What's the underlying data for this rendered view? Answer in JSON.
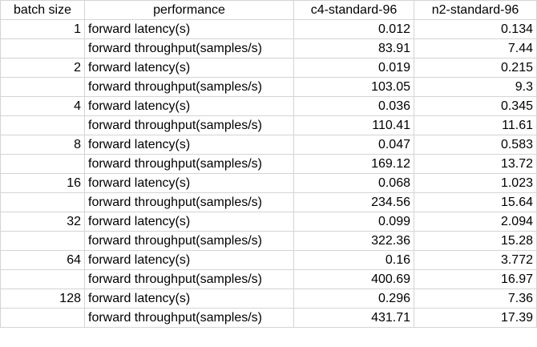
{
  "sheet": {
    "headers": [
      "batch size",
      "performance",
      "c4-standard-96",
      "n2-standard-96"
    ],
    "rows": [
      {
        "batch": "1",
        "performance": "forward latency(s)",
        "c4": "0.012",
        "n2": "0.134"
      },
      {
        "batch": "",
        "performance": "forward throughput(samples/s)",
        "c4": "83.91",
        "n2": "7.44"
      },
      {
        "batch": "2",
        "performance": "forward latency(s)",
        "c4": "0.019",
        "n2": "0.215"
      },
      {
        "batch": "",
        "performance": "forward throughput(samples/s)",
        "c4": "103.05",
        "n2": "9.3"
      },
      {
        "batch": "4",
        "performance": "forward latency(s)",
        "c4": "0.036",
        "n2": "0.345"
      },
      {
        "batch": "",
        "performance": "forward throughput(samples/s)",
        "c4": "110.41",
        "n2": "11.61"
      },
      {
        "batch": "8",
        "performance": "forward latency(s)",
        "c4": "0.047",
        "n2": "0.583"
      },
      {
        "batch": "",
        "performance": "forward throughput(samples/s)",
        "c4": "169.12",
        "n2": "13.72"
      },
      {
        "batch": "16",
        "performance": "forward latency(s)",
        "c4": "0.068",
        "n2": "1.023"
      },
      {
        "batch": "",
        "performance": "forward throughput(samples/s)",
        "c4": "234.56",
        "n2": "15.64"
      },
      {
        "batch": "32",
        "performance": "forward latency(s)",
        "c4": "0.099",
        "n2": "2.094"
      },
      {
        "batch": "",
        "performance": "forward throughput(samples/s)",
        "c4": "322.36",
        "n2": "15.28"
      },
      {
        "batch": "64",
        "performance": "forward latency(s)",
        "c4": "0.16",
        "n2": "3.772"
      },
      {
        "batch": "",
        "performance": "forward throughput(samples/s)",
        "c4": "400.69",
        "n2": "16.97"
      },
      {
        "batch": "128",
        "performance": "forward latency(s)",
        "c4": "0.296",
        "n2": "7.36"
      },
      {
        "batch": "",
        "performance": "forward throughput(samples/s)",
        "c4": "431.71",
        "n2": "17.39"
      }
    ]
  },
  "colors": {
    "gridline": "#d4d4d4",
    "text": "#000000",
    "background": "#ffffff"
  }
}
